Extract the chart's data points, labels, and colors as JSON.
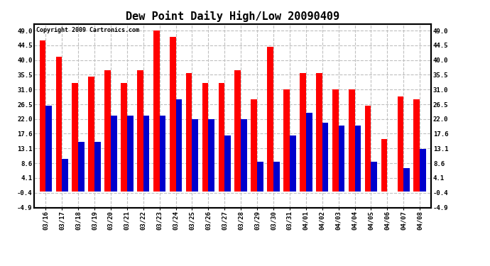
{
  "title": "Dew Point Daily High/Low 20090409",
  "copyright": "Copyright 2009 Cartronics.com",
  "dates": [
    "03/16",
    "03/17",
    "03/18",
    "03/19",
    "03/20",
    "03/21",
    "03/22",
    "03/23",
    "03/24",
    "03/25",
    "03/26",
    "03/27",
    "03/28",
    "03/29",
    "03/30",
    "03/31",
    "04/01",
    "04/02",
    "04/03",
    "04/04",
    "04/05",
    "04/06",
    "04/07",
    "04/08"
  ],
  "highs": [
    46,
    41,
    33,
    35,
    37,
    33,
    37,
    49,
    47,
    36,
    33,
    33,
    37,
    28,
    44,
    31,
    36,
    36,
    31,
    31,
    26,
    16,
    29,
    28
  ],
  "lows": [
    26,
    10,
    15,
    15,
    23,
    23,
    23,
    23,
    28,
    22,
    22,
    17,
    22,
    9,
    9,
    17,
    24,
    21,
    20,
    20,
    9,
    0,
    7,
    13
  ],
  "high_color": "#ff0000",
  "low_color": "#0000cc",
  "background_color": "#ffffff",
  "grid_color": "#c0c0c0",
  "yticks": [
    -4.9,
    -0.4,
    4.1,
    8.6,
    13.1,
    17.6,
    22.0,
    26.5,
    31.0,
    35.5,
    40.0,
    44.5,
    49.0
  ],
  "ylim": [
    -4.9,
    51.0
  ],
  "bar_width": 0.38,
  "title_fontsize": 11,
  "tick_fontsize": 6.5,
  "copyright_fontsize": 6
}
